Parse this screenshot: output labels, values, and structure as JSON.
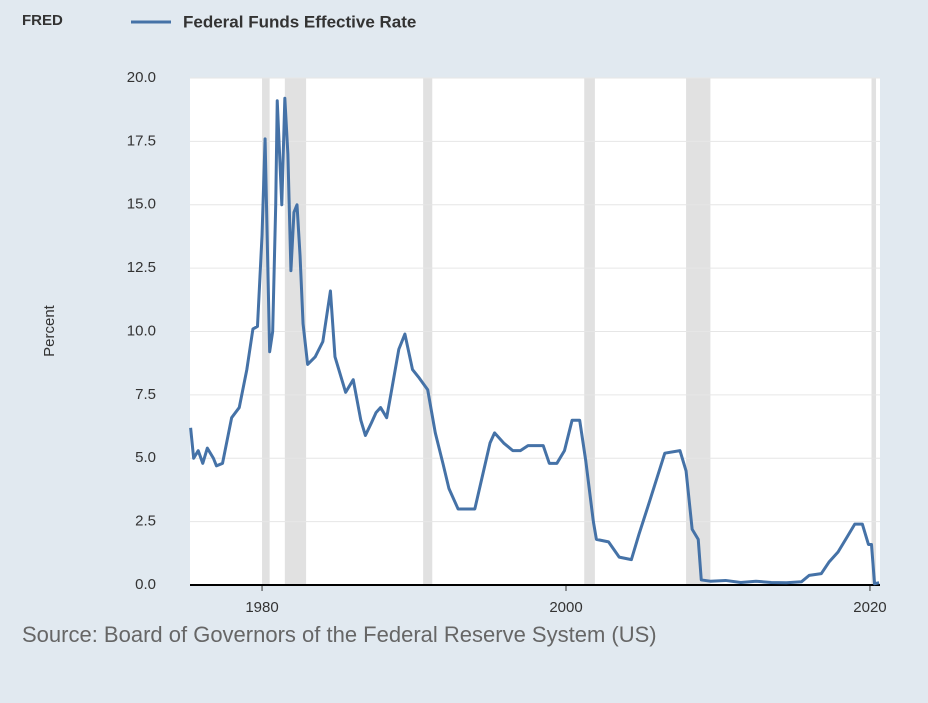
{
  "chart_data": {
    "type": "line",
    "logo": "FRED",
    "source": "Source: Board of Governors of the Federal Reserve System (US)",
    "ylabel": "Percent",
    "xlim": [
      1975.26,
      2020.66
    ],
    "xticks": [
      1980,
      2000,
      2020
    ],
    "ylim": [
      0,
      20
    ],
    "yticks": [
      {
        "value": 0,
        "label": "0.0"
      },
      2.5,
      {
        "value": 5,
        "label": "5.0"
      },
      7.5,
      {
        "value": 10,
        "label": "10.0"
      },
      12.5,
      {
        "value": 15,
        "label": "15.0"
      },
      17.5,
      {
        "value": 20,
        "label": "20.0"
      }
    ],
    "grid": true,
    "recession_color": "#e1e1e1",
    "recessions": [
      [
        1980.0,
        1980.5
      ],
      [
        1981.5,
        1982.9
      ],
      [
        1990.6,
        1991.2
      ],
      [
        2001.2,
        2001.9
      ],
      [
        2007.9,
        2009.5
      ],
      [
        2020.1,
        2020.4
      ]
    ],
    "x": [
      1975.3,
      1975.5,
      1975.8,
      1976.1,
      1976.4,
      1976.8,
      1977.0,
      1977.4,
      1977.7,
      1978.0,
      1978.5,
      1979.0,
      1979.4,
      1979.7,
      1980.0,
      1980.2,
      1980.5,
      1980.7,
      1980.9,
      1981.0,
      1981.3,
      1981.5,
      1981.7,
      1981.9,
      1982.1,
      1982.3,
      1982.5,
      1982.7,
      1983.0,
      1983.5,
      1984.0,
      1984.5,
      1984.8,
      1985.3,
      1985.5,
      1986.0,
      1986.5,
      1986.8,
      1987.2,
      1987.5,
      1987.8,
      1988.2,
      1988.5,
      1989.0,
      1989.4,
      1989.9,
      1990.3,
      1990.9,
      1991.4,
      1991.9,
      1992.3,
      1992.9,
      1993.5,
      1994.0,
      1994.5,
      1995.0,
      1995.3,
      1995.9,
      1996.5,
      1997.0,
      1997.5,
      1998.5,
      1998.9,
      1999.4,
      1999.9,
      2000.4,
      2000.9,
      2001.3,
      2001.8,
      2002.0,
      2002.8,
      2003.5,
      2004.3,
      2004.8,
      2005.5,
      2006.5,
      2007.5,
      2007.9,
      2008.3,
      2008.7,
      2008.9,
      2009.5,
      2010.5,
      2011.5,
      2012.5,
      2013.5,
      2014.5,
      2015.5,
      2016.0,
      2016.8,
      2017.3,
      2017.9,
      2018.5,
      2019.0,
      2019.5,
      2019.9,
      2020.1,
      2020.3,
      2020.6
    ],
    "series": [
      {
        "name": "Federal Funds Effective Rate",
        "color": "#4572a7",
        "values": [
          6.2,
          5.0,
          5.3,
          4.8,
          5.4,
          5.0,
          4.7,
          4.8,
          5.7,
          6.6,
          7.0,
          8.5,
          10.1,
          10.2,
          13.8,
          17.6,
          9.2,
          10.0,
          15.0,
          19.1,
          15.0,
          19.2,
          17.0,
          12.4,
          14.7,
          15.0,
          13.0,
          10.3,
          8.7,
          9.0,
          9.6,
          11.6,
          9.0,
          8.0,
          7.6,
          8.1,
          6.5,
          5.9,
          6.4,
          6.8,
          7.0,
          6.6,
          7.6,
          9.3,
          9.9,
          8.5,
          8.2,
          7.7,
          6.0,
          4.8,
          3.8,
          3.0,
          3.0,
          3.0,
          4.3,
          5.6,
          6.0,
          5.6,
          5.3,
          5.3,
          5.5,
          5.5,
          4.8,
          4.8,
          5.3,
          6.5,
          6.5,
          4.9,
          2.5,
          1.8,
          1.7,
          1.1,
          1.0,
          2.0,
          3.3,
          5.2,
          5.3,
          4.5,
          2.2,
          1.8,
          0.2,
          0.15,
          0.18,
          0.1,
          0.15,
          0.1,
          0.09,
          0.13,
          0.38,
          0.45,
          0.9,
          1.3,
          1.9,
          2.4,
          2.4,
          1.6,
          1.6,
          0.05,
          0.09
        ]
      }
    ]
  }
}
